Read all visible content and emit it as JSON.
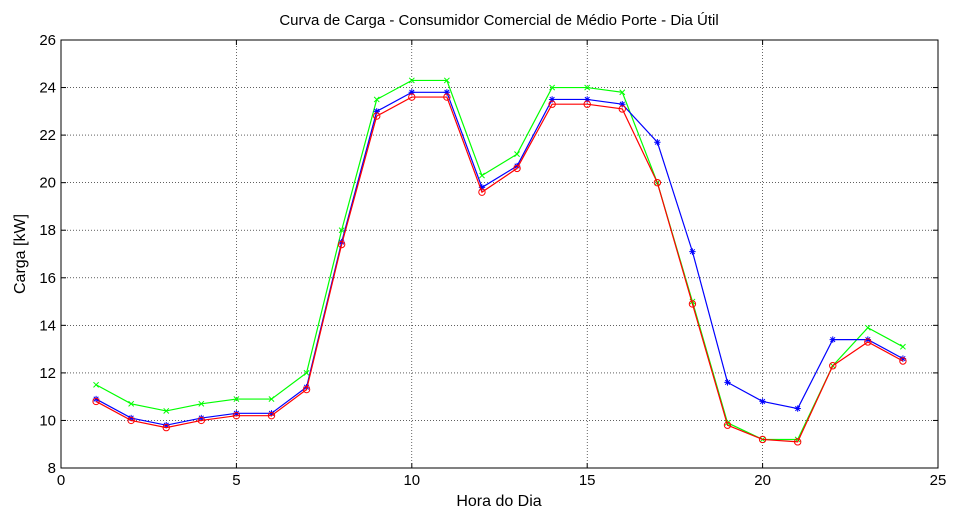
{
  "chart_data": {
    "type": "line",
    "title": "Curva de Carga - Consumidor Comercial de Médio Porte - Dia Útil",
    "xlabel": "Hora do Dia",
    "ylabel": "Carga [kW]",
    "xlim": [
      0,
      25
    ],
    "ylim": [
      8,
      26
    ],
    "xticks": [
      "0",
      "5",
      "10",
      "15",
      "20",
      "25"
    ],
    "yticks": [
      "8",
      "10",
      "12",
      "14",
      "16",
      "18",
      "20",
      "22",
      "24",
      "26"
    ],
    "grid": true,
    "x": [
      1,
      2,
      3,
      4,
      5,
      6,
      7,
      8,
      9,
      10,
      11,
      12,
      13,
      14,
      15,
      16,
      17,
      18,
      19,
      20,
      21,
      22,
      23,
      24
    ],
    "series": [
      {
        "color": "#00ff00",
        "marker": "x",
        "values": [
          11.5,
          10.7,
          10.4,
          10.7,
          10.9,
          10.9,
          12.0,
          18.0,
          23.5,
          24.3,
          24.3,
          20.3,
          21.2,
          24.0,
          24.0,
          23.8,
          20.0,
          15.0,
          9.9,
          9.2,
          9.2,
          12.3,
          13.9,
          13.1
        ]
      },
      {
        "color": "#0000ff",
        "marker": "*",
        "values": [
          10.9,
          10.1,
          9.8,
          10.1,
          10.3,
          10.3,
          11.4,
          17.5,
          23.0,
          23.8,
          23.8,
          19.8,
          20.7,
          23.5,
          23.5,
          23.3,
          21.7,
          17.1,
          11.6,
          10.8,
          10.5,
          13.4,
          13.4,
          12.6
        ]
      },
      {
        "color": "#ff0000",
        "marker": "o",
        "values": [
          10.8,
          10.0,
          9.7,
          10.0,
          10.2,
          10.2,
          11.3,
          17.4,
          22.8,
          23.6,
          23.6,
          19.6,
          20.6,
          23.3,
          23.3,
          23.1,
          20.0,
          14.9,
          9.8,
          9.2,
          9.1,
          12.3,
          13.3,
          12.5
        ]
      }
    ]
  }
}
